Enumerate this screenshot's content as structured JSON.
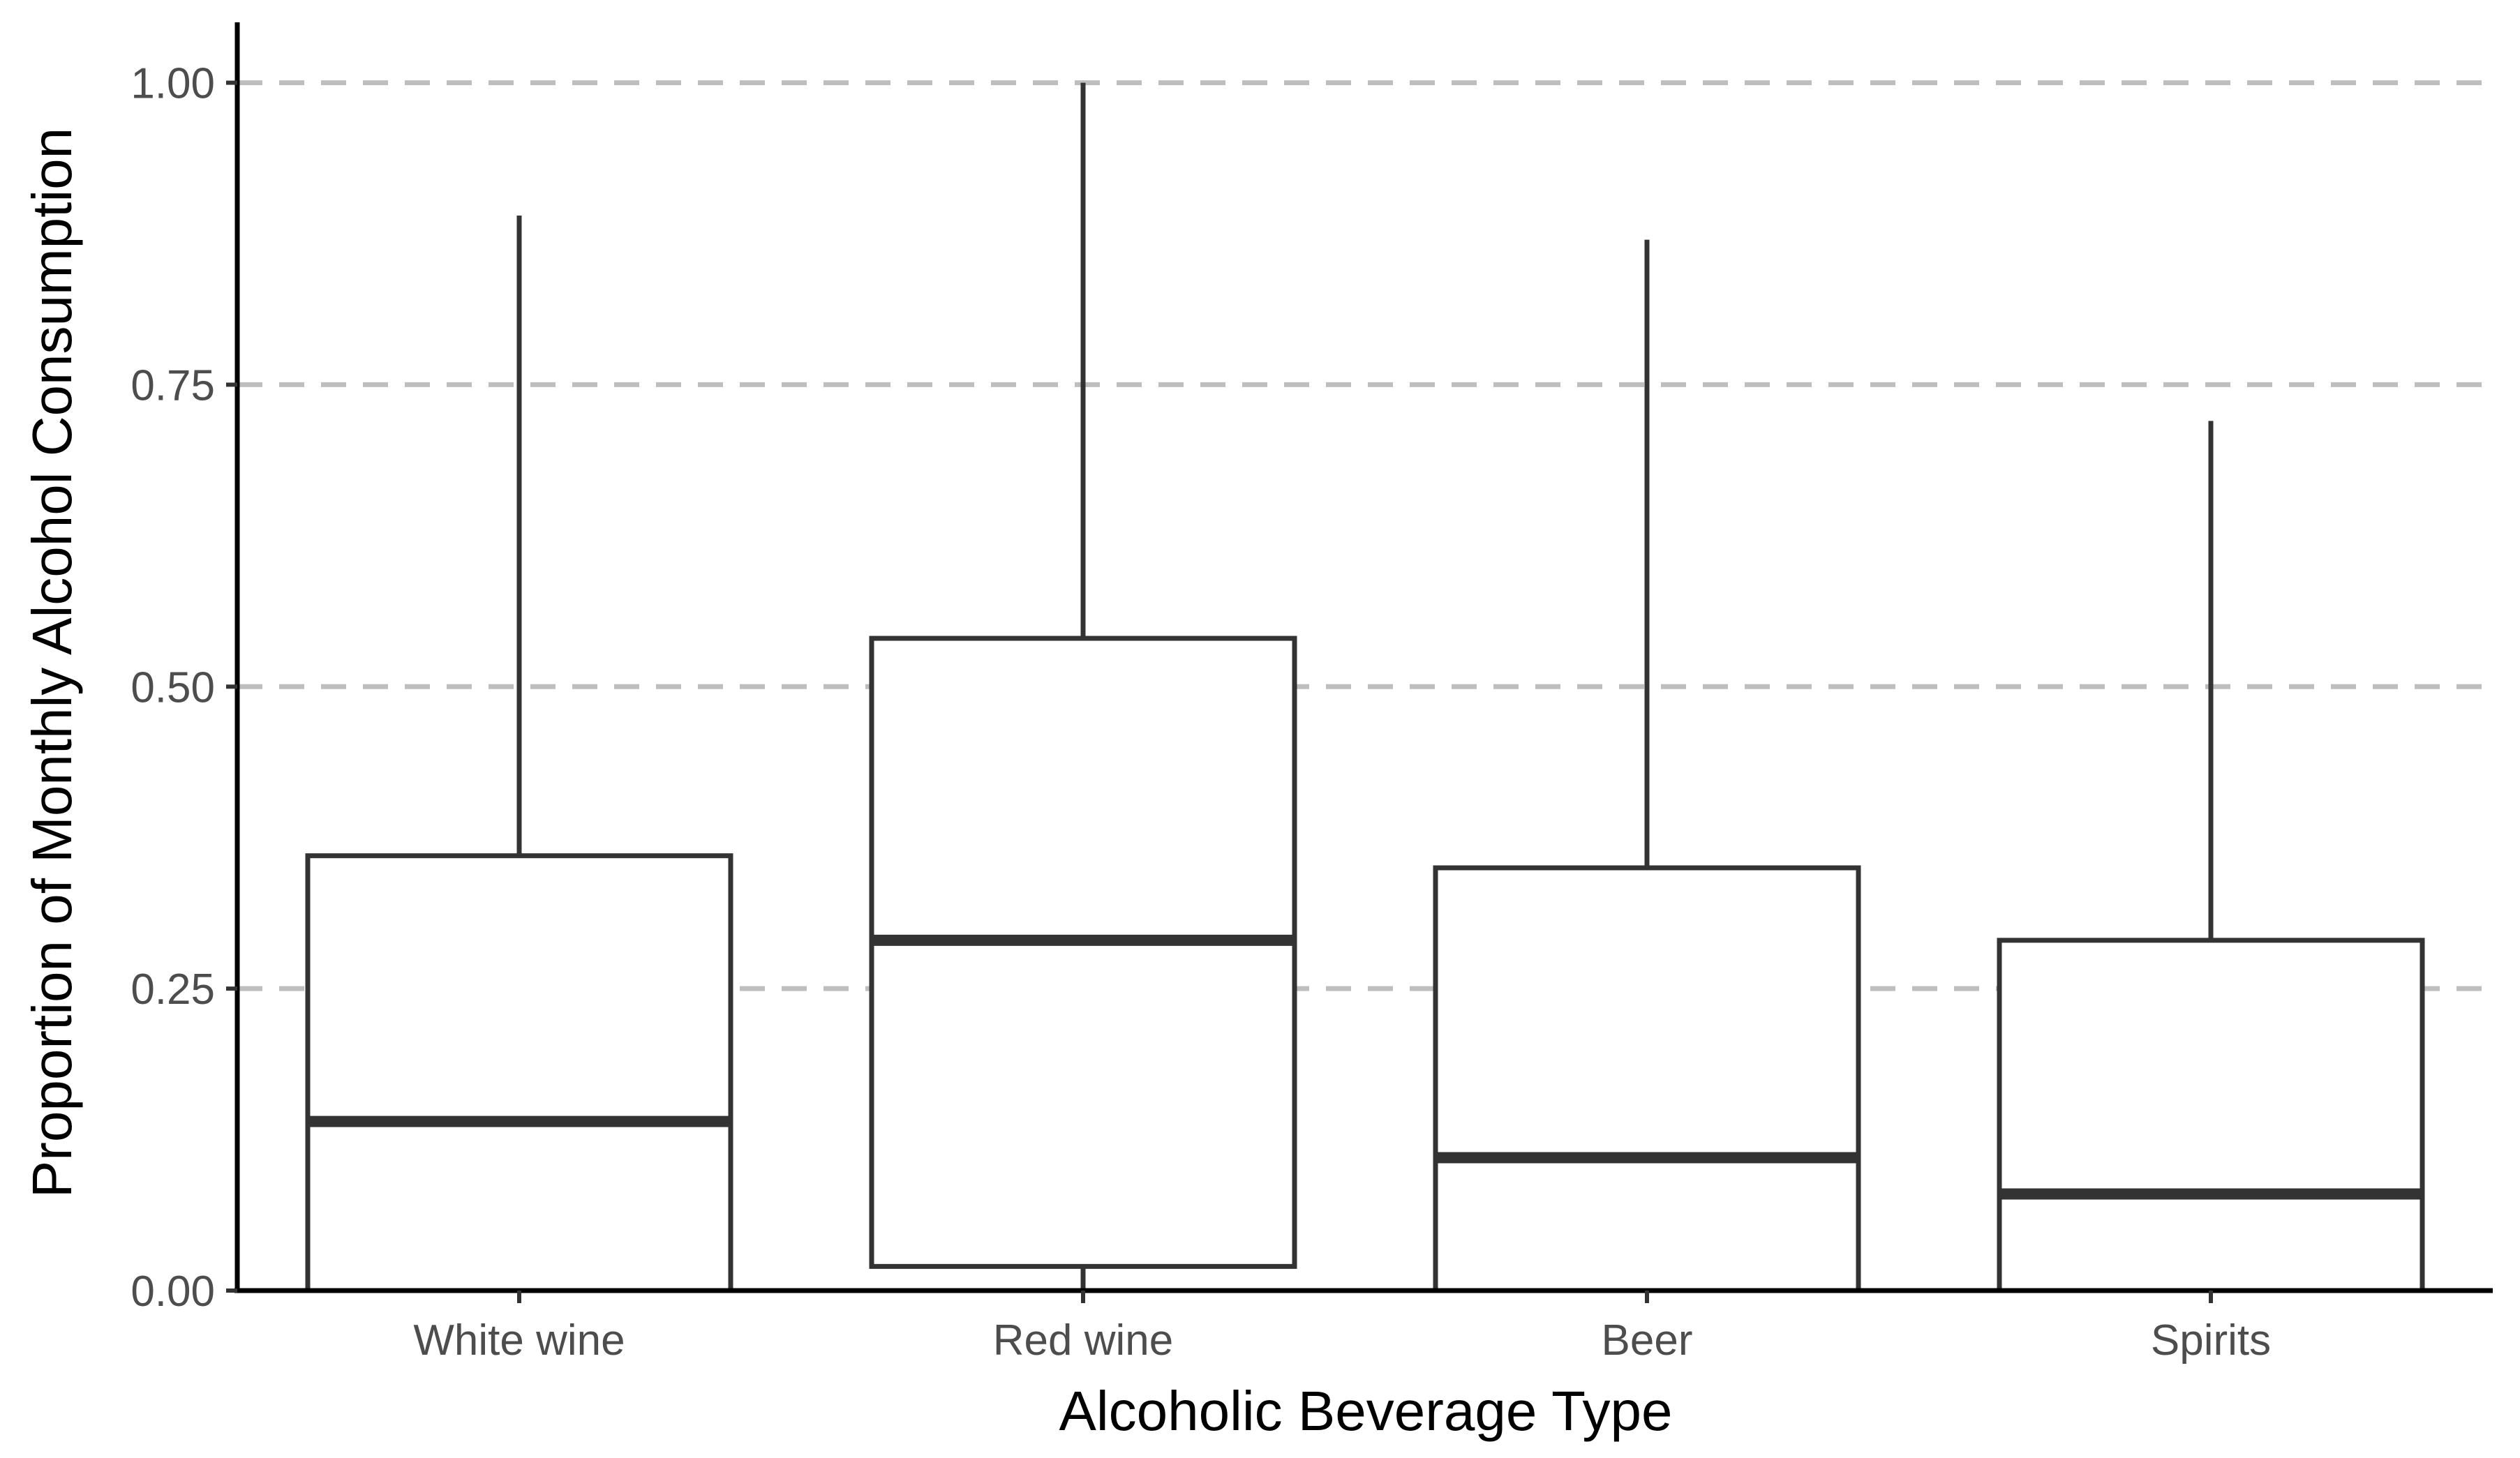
{
  "chart_data": {
    "type": "boxplot",
    "title": "",
    "xlabel": "Alcoholic Beverage Type",
    "ylabel": "Proportion of Monthly Alcohol Consumption",
    "ylim": [
      0,
      1.05
    ],
    "yticks": [
      0.0,
      0.25,
      0.5,
      0.75,
      1.0
    ],
    "ytick_labels": [
      "0.00",
      "0.25",
      "0.50",
      "0.75",
      "1.00"
    ],
    "grid": "horizontal-dashed",
    "categories": [
      "White wine",
      "Red wine",
      "Beer",
      "Spirits"
    ],
    "boxes": [
      {
        "category": "White wine",
        "whisker_low": 0.0,
        "q1": 0.0,
        "median": 0.14,
        "q3": 0.36,
        "whisker_high": 0.89
      },
      {
        "category": "Red wine",
        "whisker_low": 0.0,
        "q1": 0.02,
        "median": 0.29,
        "q3": 0.54,
        "whisker_high": 1.0
      },
      {
        "category": "Beer",
        "whisker_low": 0.0,
        "q1": 0.0,
        "median": 0.11,
        "q3": 0.35,
        "whisker_high": 0.87
      },
      {
        "category": "Spirits",
        "whisker_low": 0.0,
        "q1": 0.0,
        "median": 0.08,
        "q3": 0.29,
        "whisker_high": 0.72
      }
    ],
    "colors": {
      "box_stroke": "#333333",
      "box_fill": "#ffffff",
      "grid": "#bebebe",
      "axis": "#000000",
      "tick_text": "#4d4d4d"
    }
  }
}
